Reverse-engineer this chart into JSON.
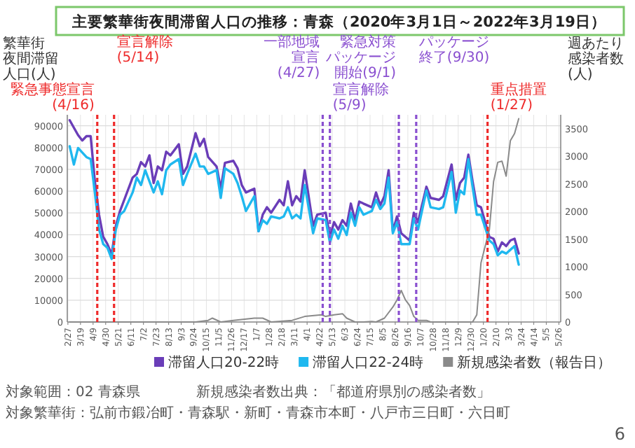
{
  "chart_data": {
    "type": "line",
    "title": "主要繁華街夜間滞留人口の推移：青森（2020年3月1日～2022年3月19日）",
    "ylabel": "繁華街夜間滞留人口(人)",
    "y2label": "週あたり感染者数(人)",
    "xlim": [
      "2020-02-26",
      "2022-05-29"
    ],
    "xticks": [
      {
        "value": "2020-02-27",
        "label": "2/27"
      },
      {
        "value": "2020-03-19",
        "label": "3/19"
      },
      {
        "value": "2020-04-09",
        "label": "4/9"
      },
      {
        "value": "2020-04-30",
        "label": "4/30"
      },
      {
        "value": "2020-05-21",
        "label": "5/21"
      },
      {
        "value": "2020-06-11",
        "label": "6/11"
      },
      {
        "value": "2020-07-02",
        "label": "7/2"
      },
      {
        "value": "2020-07-23",
        "label": "7/23"
      },
      {
        "value": "2020-08-13",
        "label": "8/13"
      },
      {
        "value": "2020-09-03",
        "label": "9/3"
      },
      {
        "value": "2020-09-24",
        "label": "9/24"
      },
      {
        "value": "2020-10-15",
        "label": "10/15"
      },
      {
        "value": "2020-11-05",
        "label": "11/5"
      },
      {
        "value": "2020-11-26",
        "label": "11/26"
      },
      {
        "value": "2020-12-17",
        "label": "12/17"
      },
      {
        "value": "2021-01-07",
        "label": "1/7"
      },
      {
        "value": "2021-01-28",
        "label": "1/28"
      },
      {
        "value": "2021-02-18",
        "label": "2/18"
      },
      {
        "value": "2021-03-11",
        "label": "3/11"
      },
      {
        "value": "2021-04-01",
        "label": "4/1"
      },
      {
        "value": "2021-04-22",
        "label": "4/22"
      },
      {
        "value": "2021-05-13",
        "label": "5/13"
      },
      {
        "value": "2021-06-03",
        "label": "6/3"
      },
      {
        "value": "2021-06-24",
        "label": "6/24"
      },
      {
        "value": "2021-07-15",
        "label": "7/15"
      },
      {
        "value": "2021-08-05",
        "label": "8/5"
      },
      {
        "value": "2021-08-26",
        "label": "8/26"
      },
      {
        "value": "2021-09-16",
        "label": "9/16"
      },
      {
        "value": "2021-10-07",
        "label": "10/7"
      },
      {
        "value": "2021-10-28",
        "label": "10/28"
      },
      {
        "value": "2021-11-18",
        "label": "11/18"
      },
      {
        "value": "2021-12-09",
        "label": "12/9"
      },
      {
        "value": "2021-12-30",
        "label": "12/30"
      },
      {
        "value": "2022-01-20",
        "label": "1/20"
      },
      {
        "value": "2022-02-10",
        "label": "2/10"
      },
      {
        "value": "2022-03-03",
        "label": "3/3"
      },
      {
        "value": "2022-03-24",
        "label": "3/24"
      },
      {
        "value": "2022-04-14",
        "label": "4/14"
      },
      {
        "value": "2022-05-05",
        "label": "5/5"
      },
      {
        "value": "2022-05-26",
        "label": "5/26"
      }
    ],
    "ylim": [
      0,
      95000
    ],
    "yticks": [
      0,
      10000,
      20000,
      30000,
      40000,
      50000,
      60000,
      70000,
      80000,
      90000
    ],
    "y2lim": [
      0,
      3750
    ],
    "y2ticks": [
      0,
      500,
      1000,
      1500,
      2000,
      2500,
      3000,
      3500
    ],
    "grid": true,
    "legend": "bottom",
    "series": [
      {
        "name": "滞留人口20-22時",
        "color": "#6a3db8",
        "x": [
          "2020-03-01",
          "2020-03-15",
          "2020-03-22",
          "2020-03-29",
          "2020-04-05",
          "2020-04-12",
          "2020-04-19",
          "2020-04-26",
          "2020-05-03",
          "2020-05-10",
          "2020-05-17",
          "2020-05-24",
          "2020-05-31",
          "2020-06-14",
          "2020-06-21",
          "2020-06-28",
          "2020-07-05",
          "2020-07-12",
          "2020-07-19",
          "2020-07-26",
          "2020-08-02",
          "2020-08-09",
          "2020-08-16",
          "2020-08-30",
          "2020-09-06",
          "2020-09-13",
          "2020-09-27",
          "2020-10-04",
          "2020-10-11",
          "2020-10-18",
          "2020-11-01",
          "2020-11-08",
          "2020-11-15",
          "2020-11-29",
          "2020-12-06",
          "2020-12-13",
          "2020-12-20",
          "2021-01-03",
          "2021-01-10",
          "2021-01-17",
          "2021-01-24",
          "2021-01-31",
          "2021-02-14",
          "2021-02-21",
          "2021-02-28",
          "2021-03-07",
          "2021-03-14",
          "2021-03-21",
          "2021-03-28",
          "2021-04-11",
          "2021-04-18",
          "2021-05-02",
          "2021-05-09",
          "2021-05-16",
          "2021-05-23",
          "2021-05-30",
          "2021-06-06",
          "2021-06-13",
          "2021-06-20",
          "2021-06-27",
          "2021-07-04",
          "2021-07-18",
          "2021-07-25",
          "2021-08-01",
          "2021-08-08",
          "2021-08-15",
          "2021-08-22",
          "2021-08-29",
          "2021-09-05",
          "2021-09-19",
          "2021-09-26",
          "2021-10-03",
          "2021-10-17",
          "2021-10-24",
          "2021-11-07",
          "2021-11-14",
          "2021-11-28",
          "2021-12-05",
          "2021-12-12",
          "2021-12-19",
          "2021-12-26",
          "2022-01-02",
          "2022-01-09",
          "2022-01-16",
          "2022-01-30",
          "2022-02-06",
          "2022-02-13",
          "2022-02-20",
          "2022-02-27",
          "2022-03-06",
          "2022-03-13",
          "2022-03-20"
        ],
        "values": [
          92500,
          85700,
          83200,
          85200,
          85200,
          64500,
          49200,
          39000,
          35700,
          30900,
          44100,
          50900,
          56000,
          66200,
          67900,
          73300,
          71300,
          76400,
          63700,
          71300,
          69600,
          78100,
          76400,
          81500,
          67900,
          71300,
          86600,
          80600,
          84000,
          75600,
          71300,
          61100,
          73000,
          73900,
          70500,
          62800,
          59400,
          61100,
          41600,
          49200,
          52600,
          50100,
          56000,
          53500,
          64500,
          53500,
          57700,
          55200,
          69600,
          44100,
          49200,
          50100,
          39000,
          45800,
          42400,
          46700,
          44100,
          54300,
          46700,
          55200,
          54300,
          52600,
          59400,
          53500,
          57700,
          69600,
          41600,
          48400,
          40700,
          37400,
          50100,
          45800,
          62000,
          56900,
          56000,
          57700,
          72200,
          56000,
          63700,
          66200,
          76700,
          64500,
          53500,
          52600,
          39000,
          38200,
          32300,
          36500,
          34800,
          37400,
          38200,
          31400
        ]
      },
      {
        "name": "滞留人口22-24時",
        "color": "#1fb8ef",
        "x": [
          "2020-03-01",
          "2020-03-08",
          "2020-03-15",
          "2020-03-29",
          "2020-04-05",
          "2020-04-12",
          "2020-04-19",
          "2020-04-26",
          "2020-05-03",
          "2020-05-10",
          "2020-05-17",
          "2020-05-24",
          "2020-05-31",
          "2020-06-14",
          "2020-06-21",
          "2020-06-28",
          "2020-07-05",
          "2020-07-19",
          "2020-07-26",
          "2020-08-02",
          "2020-08-09",
          "2020-08-16",
          "2020-08-30",
          "2020-09-06",
          "2020-09-13",
          "2020-09-27",
          "2020-10-04",
          "2020-10-11",
          "2020-10-18",
          "2020-11-01",
          "2020-11-08",
          "2020-11-15",
          "2020-11-29",
          "2020-12-06",
          "2020-12-13",
          "2020-12-20",
          "2021-01-03",
          "2021-01-10",
          "2021-01-17",
          "2021-01-24",
          "2021-01-31",
          "2021-02-14",
          "2021-02-21",
          "2021-02-28",
          "2021-03-07",
          "2021-03-14",
          "2021-03-21",
          "2021-03-28",
          "2021-04-11",
          "2021-04-18",
          "2021-05-02",
          "2021-05-09",
          "2021-05-16",
          "2021-05-23",
          "2021-05-30",
          "2021-06-06",
          "2021-06-13",
          "2021-06-20",
          "2021-06-27",
          "2021-07-04",
          "2021-07-18",
          "2021-07-25",
          "2021-08-01",
          "2021-08-08",
          "2021-08-15",
          "2021-08-22",
          "2021-08-29",
          "2021-09-05",
          "2021-09-19",
          "2021-09-26",
          "2021-10-03",
          "2021-10-17",
          "2021-10-24",
          "2021-11-07",
          "2021-11-14",
          "2021-11-28",
          "2021-12-05",
          "2021-12-12",
          "2021-12-19",
          "2021-12-26",
          "2022-01-02",
          "2022-01-09",
          "2022-01-16",
          "2022-01-30",
          "2022-02-06",
          "2022-02-13",
          "2022-02-20",
          "2022-02-27",
          "2022-03-06",
          "2022-03-13",
          "2022-03-20"
        ],
        "values": [
          80600,
          72200,
          79800,
          75600,
          74700,
          59400,
          42400,
          35700,
          34000,
          28900,
          42400,
          49200,
          50900,
          59400,
          66200,
          62800,
          69600,
          59400,
          64500,
          58600,
          69600,
          72200,
          74700,
          62800,
          67900,
          77200,
          71300,
          71300,
          67900,
          69600,
          56900,
          70500,
          67900,
          63700,
          57700,
          50900,
          57700,
          41600,
          46700,
          45000,
          48400,
          47500,
          48400,
          52600,
          47500,
          49200,
          47500,
          62800,
          40700,
          47500,
          46700,
          36500,
          42400,
          38200,
          44100,
          39900,
          50100,
          44100,
          52600,
          49200,
          50900,
          56000,
          51800,
          54300,
          66200,
          40700,
          45800,
          35700,
          35700,
          47500,
          42400,
          60300,
          52600,
          51800,
          52600,
          68800,
          50100,
          60300,
          58600,
          74700,
          62000,
          49200,
          49200,
          37400,
          35700,
          30600,
          32300,
          31400,
          33100,
          34800,
          26300
        ]
      },
      {
        "name": "新規感染者数（報告日）",
        "color": "#8a8a8a",
        "axis": "y2",
        "x": [
          "2020-03-01",
          "2020-09-27",
          "2020-10-18",
          "2020-10-25",
          "2020-11-08",
          "2020-11-29",
          "2021-01-03",
          "2021-01-17",
          "2021-01-31",
          "2021-03-07",
          "2021-03-28",
          "2021-04-25",
          "2021-05-02",
          "2021-05-16",
          "2021-05-30",
          "2021-06-06",
          "2021-06-20",
          "2021-07-04",
          "2021-07-18",
          "2021-07-25",
          "2021-08-08",
          "2021-08-22",
          "2021-08-29",
          "2021-09-05",
          "2021-09-12",
          "2021-09-19",
          "2021-09-26",
          "2021-10-03",
          "2021-10-17",
          "2021-10-24",
          "2022-01-02",
          "2022-01-09",
          "2022-01-16",
          "2022-01-30",
          "2022-02-06",
          "2022-02-13",
          "2022-02-20",
          "2022-02-27",
          "2022-03-06",
          "2022-03-13",
          "2022-03-20"
        ],
        "values": [
          0,
          0,
          30,
          70,
          0,
          30,
          70,
          70,
          0,
          30,
          100,
          130,
          100,
          130,
          150,
          70,
          0,
          0,
          10,
          0,
          70,
          270,
          400,
          570,
          400,
          300,
          100,
          30,
          30,
          0,
          0,
          130,
          1070,
          1670,
          2540,
          2890,
          2910,
          2640,
          3280,
          3410,
          3680
        ]
      }
    ],
    "ref_lines": [
      {
        "axis": "x",
        "value": "2020-04-16",
        "label": "緊急事態宣言(4/16)",
        "color": "#ee2a2a",
        "line_style": "dashed"
      },
      {
        "axis": "x",
        "value": "2020-05-14",
        "label": "宣言解除(5/14)",
        "color": "#ee2a2a",
        "line_style": "dashed"
      },
      {
        "axis": "x",
        "value": "2021-04-27",
        "label": "一部地域宣言(4/27)",
        "color": "#8a4fd0",
        "line_style": "dashed"
      },
      {
        "axis": "x",
        "value": "2021-05-09",
        "label": "宣言解除(5/9)",
        "color": "#8a4fd0",
        "line_style": "dashed"
      },
      {
        "axis": "x",
        "value": "2021-09-01",
        "label": "緊急対策パッケージ開始(9/1)",
        "color": "#8a4fd0",
        "line_style": "dashed"
      },
      {
        "axis": "x",
        "value": "2021-09-30",
        "label": "パッケージ終了(9/30)",
        "color": "#8a4fd0",
        "line_style": "dashed"
      },
      {
        "axis": "x",
        "value": "2022-01-27",
        "label": "重点措置(1/27)",
        "color": "#ee2a2a",
        "line_style": "dashed"
      }
    ],
    "annotations": [
      "対象範囲：02 青森県",
      "新規感染者数出典：「都道府県別の感染者数」",
      "対象繁華街：弘前市鍛冶町・青森駅・新町・青森市本町・八戸市三日町・六日町",
      "6"
    ]
  }
}
